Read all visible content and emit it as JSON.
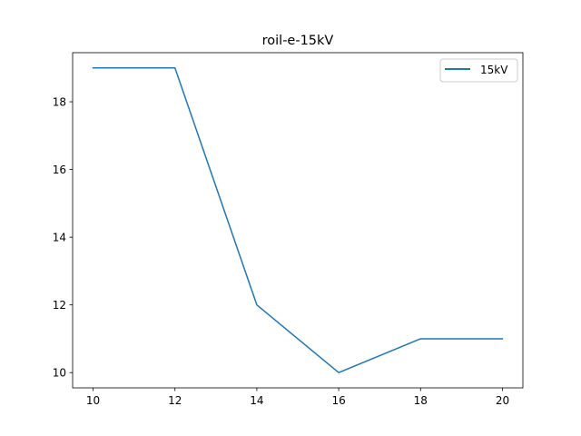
{
  "chart_data": {
    "type": "line",
    "title": "roil-e-15kV",
    "xlabel": "",
    "ylabel": "",
    "x": [
      10,
      12,
      14,
      16,
      18,
      20
    ],
    "series": [
      {
        "name": "15kV",
        "values": [
          19,
          19,
          12,
          10,
          11,
          11
        ],
        "color": "#1f77b4"
      }
    ],
    "xlim": [
      9.5,
      20.5
    ],
    "ylim": [
      9.55,
      19.45
    ],
    "xticks": [
      10,
      12,
      14,
      16,
      18,
      20
    ],
    "xtick_labels": [
      "10",
      "12",
      "14",
      "16",
      "18",
      "20"
    ],
    "yticks": [
      10,
      12,
      14,
      16,
      18
    ],
    "ytick_labels": [
      "10",
      "12",
      "14",
      "16",
      "18"
    ],
    "grid": false,
    "legend": "top-right"
  }
}
